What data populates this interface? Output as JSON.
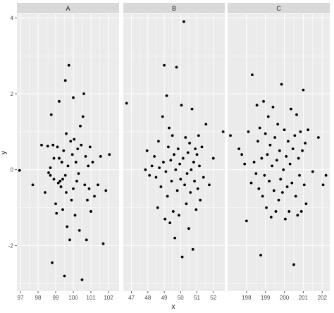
{
  "chart_data": {
    "type": "scatter",
    "facet_type": "wrap",
    "xlabel": "x",
    "ylabel": "y",
    "ylim": [
      -3.2,
      4.1
    ],
    "y_ticks": [
      -2,
      0,
      2,
      4
    ],
    "grid": true,
    "scales_x": "free",
    "panels": [
      {
        "name": "A",
        "xlim": [
          96.8,
          102.6
        ],
        "x_ticks": [
          97,
          98,
          99,
          100,
          101,
          102
        ],
        "points": [
          [
            96.95,
            -0.02
          ],
          [
            97.7,
            -0.4
          ],
          [
            98.2,
            0.65
          ],
          [
            98.4,
            -0.6
          ],
          [
            98.55,
            0.62
          ],
          [
            98.6,
            -0.08
          ],
          [
            98.7,
            0.05
          ],
          [
            98.7,
            -0.15
          ],
          [
            98.75,
            1.45
          ],
          [
            98.8,
            -2.45
          ],
          [
            98.85,
            0.65
          ],
          [
            98.9,
            0.3
          ],
          [
            98.9,
            -0.25
          ],
          [
            99.0,
            -0.9
          ],
          [
            99.05,
            -1.15
          ],
          [
            99.1,
            0.6
          ],
          [
            99.15,
            -0.35
          ],
          [
            99.2,
            1.8
          ],
          [
            99.2,
            0.3
          ],
          [
            99.25,
            -0.3
          ],
          [
            99.3,
            -0.45
          ],
          [
            99.35,
            0.2
          ],
          [
            99.4,
            -1.05
          ],
          [
            99.4,
            -0.25
          ],
          [
            99.45,
            0.5
          ],
          [
            99.5,
            -2.8
          ],
          [
            99.55,
            -0.15
          ],
          [
            99.55,
            2.35
          ],
          [
            99.6,
            0.95
          ],
          [
            99.6,
            -0.6
          ],
          [
            99.65,
            -1.5
          ],
          [
            99.7,
            0.1
          ],
          [
            99.75,
            2.75
          ],
          [
            99.8,
            -1.85
          ],
          [
            99.85,
            0.75
          ],
          [
            99.9,
            -0.8
          ],
          [
            99.95,
            0.4
          ],
          [
            100.0,
            -0.5
          ],
          [
            100.0,
            1.9
          ],
          [
            100.05,
            0.8
          ],
          [
            100.1,
            -1.2
          ],
          [
            100.15,
            0.2
          ],
          [
            100.2,
            -0.3
          ],
          [
            100.25,
            0.55
          ],
          [
            100.3,
            -0.1
          ],
          [
            100.35,
            -1.6
          ],
          [
            100.4,
            1.15
          ],
          [
            100.45,
            0.65
          ],
          [
            100.5,
            -2.9
          ],
          [
            100.55,
            1.4
          ],
          [
            100.6,
            2.0
          ],
          [
            100.65,
            -0.4
          ],
          [
            100.7,
            0.35
          ],
          [
            100.75,
            -1.85
          ],
          [
            100.8,
            -0.8
          ],
          [
            100.85,
            0.1
          ],
          [
            100.9,
            -0.5
          ],
          [
            100.95,
            0.6
          ],
          [
            101.0,
            -1.1
          ],
          [
            101.1,
            0.2
          ],
          [
            101.2,
            -0.7
          ],
          [
            101.4,
            -0.4
          ],
          [
            101.55,
            0.35
          ],
          [
            101.7,
            -1.95
          ],
          [
            101.85,
            -0.55
          ],
          [
            102.05,
            0.4
          ]
        ]
      },
      {
        "name": "B",
        "xlim": [
          46.5,
          52.7
        ],
        "x_ticks": [
          47,
          48,
          49,
          50,
          51,
          52
        ],
        "points": [
          [
            46.7,
            1.75
          ],
          [
            47.85,
            0.0
          ],
          [
            47.95,
            0.5
          ],
          [
            48.1,
            -0.15
          ],
          [
            48.25,
            0.1
          ],
          [
            48.4,
            0.35
          ],
          [
            48.5,
            -0.2
          ],
          [
            48.6,
            -1.0
          ],
          [
            48.65,
            0.75
          ],
          [
            48.7,
            0.05
          ],
          [
            48.8,
            -0.45
          ],
          [
            48.9,
            1.4
          ],
          [
            48.95,
            0.2
          ],
          [
            49.0,
            2.75
          ],
          [
            49.05,
            -1.3
          ],
          [
            49.1,
            -0.05
          ],
          [
            49.15,
            1.95
          ],
          [
            49.2,
            -0.7
          ],
          [
            49.25,
            0.6
          ],
          [
            49.3,
            1.1
          ],
          [
            49.35,
            -1.4
          ],
          [
            49.4,
            0.25
          ],
          [
            49.45,
            -0.3
          ],
          [
            49.5,
            0.9
          ],
          [
            49.55,
            -1.1
          ],
          [
            49.6,
            0.4
          ],
          [
            49.65,
            -1.8
          ],
          [
            49.7,
            0.0
          ],
          [
            49.75,
            2.7
          ],
          [
            49.8,
            -0.55
          ],
          [
            49.85,
            0.55
          ],
          [
            49.9,
            -1.2
          ],
          [
            49.95,
            0.15
          ],
          [
            50.0,
            -0.25
          ],
          [
            50.05,
            1.7
          ],
          [
            50.1,
            -2.3
          ],
          [
            50.15,
            0.3
          ],
          [
            50.2,
            3.9
          ],
          [
            50.25,
            -0.4
          ],
          [
            50.3,
            0.85
          ],
          [
            50.35,
            -0.9
          ],
          [
            50.4,
            -0.1
          ],
          [
            50.45,
            0.45
          ],
          [
            50.5,
            -1.55
          ],
          [
            50.55,
            0.7
          ],
          [
            50.6,
            -0.6
          ],
          [
            50.65,
            0.0
          ],
          [
            50.7,
            1.6
          ],
          [
            50.75,
            -2.1
          ],
          [
            50.8,
            0.2
          ],
          [
            50.85,
            -0.3
          ],
          [
            50.9,
            0.55
          ],
          [
            50.95,
            -1.05
          ],
          [
            51.0,
            0.4
          ],
          [
            51.05,
            -0.5
          ],
          [
            51.1,
            0.9
          ],
          [
            51.15,
            0.1
          ],
          [
            51.2,
            -0.8
          ],
          [
            51.3,
            0.6
          ],
          [
            51.4,
            -0.2
          ],
          [
            51.55,
            1.2
          ],
          [
            51.75,
            -0.4
          ],
          [
            52.0,
            0.3
          ],
          [
            52.6,
            1.0
          ]
        ]
      },
      {
        "name": "C",
        "xlim": [
          197.0,
          202.4
        ],
        "x_ticks": [
          198,
          199,
          200,
          201,
          202
        ],
        "points": [
          [
            197.15,
            0.9
          ],
          [
            197.6,
            0.55
          ],
          [
            197.75,
            0.4
          ],
          [
            197.9,
            0.15
          ],
          [
            198.0,
            -1.35
          ],
          [
            198.1,
            1.0
          ],
          [
            198.25,
            -0.35
          ],
          [
            198.3,
            2.5
          ],
          [
            198.4,
            0.2
          ],
          [
            198.5,
            -0.1
          ],
          [
            198.55,
            1.7
          ],
          [
            198.6,
            0.75
          ],
          [
            198.65,
            -0.5
          ],
          [
            198.7,
            1.1
          ],
          [
            198.75,
            -2.25
          ],
          [
            198.8,
            0.3
          ],
          [
            198.85,
            -0.7
          ],
          [
            198.9,
            1.8
          ],
          [
            198.95,
            -0.15
          ],
          [
            199.0,
            0.95
          ],
          [
            199.05,
            -1.0
          ],
          [
            199.1,
            0.4
          ],
          [
            199.15,
            1.4
          ],
          [
            199.2,
            -0.3
          ],
          [
            199.25,
            0.65
          ],
          [
            199.3,
            -1.25
          ],
          [
            199.35,
            0.1
          ],
          [
            199.4,
            1.65
          ],
          [
            199.45,
            -0.55
          ],
          [
            199.5,
            0.85
          ],
          [
            199.55,
            -1.1
          ],
          [
            199.6,
            0.25
          ],
          [
            199.65,
            1.2
          ],
          [
            199.7,
            -0.8
          ],
          [
            199.75,
            0.5
          ],
          [
            199.8,
            -0.25
          ],
          [
            199.85,
            2.25
          ],
          [
            199.9,
            -0.6
          ],
          [
            199.95,
            0.0
          ],
          [
            200.0,
            1.05
          ],
          [
            200.05,
            -1.3
          ],
          [
            200.1,
            0.35
          ],
          [
            200.15,
            -0.45
          ],
          [
            200.2,
            0.75
          ],
          [
            200.25,
            -1.1
          ],
          [
            200.3,
            0.15
          ],
          [
            200.35,
            1.6
          ],
          [
            200.4,
            -0.35
          ],
          [
            200.45,
            0.55
          ],
          [
            200.5,
            -2.5
          ],
          [
            200.55,
            0.9
          ],
          [
            200.6,
            -0.7
          ],
          [
            200.65,
            1.45
          ],
          [
            200.7,
            -1.2
          ],
          [
            200.75,
            0.3
          ],
          [
            200.8,
            -0.15
          ],
          [
            200.85,
            1.0
          ],
          [
            200.9,
            -1.1
          ],
          [
            200.95,
            0.5
          ],
          [
            201.0,
            2.1
          ],
          [
            201.05,
            -0.4
          ],
          [
            201.1,
            0.7
          ],
          [
            201.15,
            -0.9
          ],
          [
            201.25,
            1.05
          ],
          [
            201.5,
            -0.05
          ],
          [
            201.8,
            0.85
          ],
          [
            202.05,
            -0.4
          ],
          [
            202.2,
            -0.15
          ]
        ]
      }
    ]
  }
}
